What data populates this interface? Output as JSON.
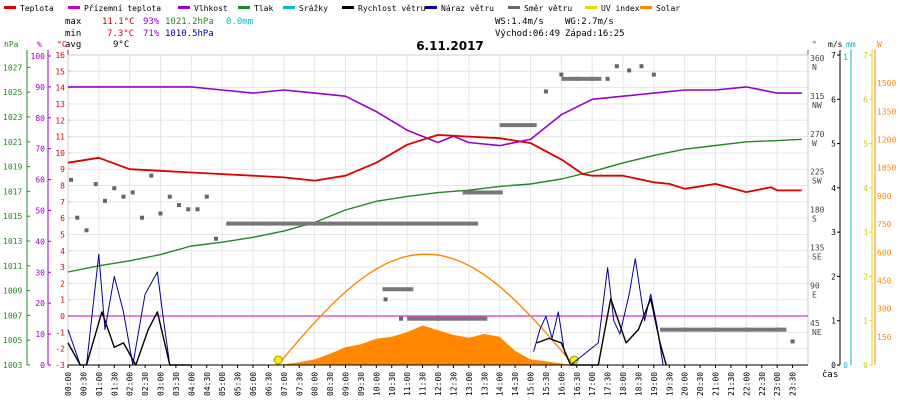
{
  "chart_data": {
    "type": "line",
    "title": "6.11.2017",
    "legend": [
      {
        "key": "temp",
        "label": "Teplota",
        "color": "#dd0000"
      },
      {
        "key": "feel",
        "label": "Přízemní teplota",
        "color": "#cc00cc"
      },
      {
        "key": "hum",
        "label": "Vlhkost",
        "color": "#9900cc"
      },
      {
        "key": "press",
        "label": "Tlak",
        "color": "#228822"
      },
      {
        "key": "rain",
        "label": "Srážky",
        "color": "#00bbcc"
      },
      {
        "key": "wspd",
        "label": "Rychlost větru",
        "color": "#000000"
      },
      {
        "key": "gust",
        "label": "Náraz větru",
        "color": "#000099"
      },
      {
        "key": "wdir",
        "label": "Směr větru",
        "color": "#666666"
      },
      {
        "key": "uv",
        "label": "UV index",
        "color": "#dddd00"
      },
      {
        "key": "solar",
        "label": "Solar",
        "color": "#ff8800"
      }
    ],
    "stats": {
      "max_label": "max",
      "max_temp": "11.1°C",
      "max_hum": "93%",
      "max_press": "1021.2hPa",
      "max_rain": "0.0mm",
      "min_label": "min",
      "min_temp": "7.3°C",
      "min_hum": "71%",
      "min_press": "1010.5hPa",
      "avg_label": "avg",
      "avg_temp": "9°C",
      "ws": "WS:1.4m/s",
      "wg": "WG:2.7m/s",
      "sunrise": "Východ:06:49",
      "sunset": "Západ:16:25"
    },
    "axes": {
      "hpa": {
        "unit": "hPa",
        "ticks": [
          1027,
          1025,
          1023,
          1021,
          1019,
          1017,
          1015,
          1013,
          1011,
          1009,
          1007,
          1005,
          1003
        ]
      },
      "pct": {
        "unit": "%",
        "ticks": [
          100,
          90,
          80,
          70,
          60,
          50,
          40,
          30,
          20,
          10,
          0
        ]
      },
      "temp": {
        "unit": "°C",
        "ticks": [
          16,
          15,
          14,
          13,
          12,
          11,
          10,
          9,
          8,
          7,
          6,
          5,
          4,
          3,
          2,
          1,
          0,
          -1,
          -2,
          -3
        ]
      },
      "dir": {
        "unit": "°",
        "ticks": [
          {
            "deg": "360",
            "c": "N"
          },
          {
            "deg": "315",
            "c": "NW"
          },
          {
            "deg": "270",
            "c": "W"
          },
          {
            "deg": "225",
            "c": "SW"
          },
          {
            "deg": "180",
            "c": "S"
          },
          {
            "deg": "135",
            "c": "SE"
          },
          {
            "deg": "90",
            "c": "E"
          },
          {
            "deg": "45",
            "c": "NE"
          }
        ]
      },
      "ms": {
        "unit": "m/s",
        "ticks": [
          7,
          6,
          5,
          4,
          3,
          2,
          1,
          0
        ]
      },
      "mm": {
        "unit": "mm",
        "ticks": [
          1,
          0
        ]
      },
      "uv": {
        "ticks": [
          7,
          6,
          5,
          4,
          3,
          2,
          1,
          0
        ]
      },
      "w": {
        "unit": "W",
        "ticks": [
          1500,
          1350,
          1200,
          1050,
          900,
          750,
          600,
          450,
          300,
          150
        ]
      },
      "xlabel": "čas",
      "x_ticks": [
        "00:00",
        "00:30",
        "01:00",
        "01:30",
        "02:00",
        "02:30",
        "03:00",
        "03:30",
        "04:00",
        "04:30",
        "05:00",
        "05:30",
        "06:00",
        "06:30",
        "07:00",
        "07:30",
        "08:00",
        "08:30",
        "09:00",
        "09:30",
        "10:00",
        "10:30",
        "11:00",
        "11:30",
        "12:00",
        "12:30",
        "13:00",
        "13:30",
        "14:00",
        "14:30",
        "15:00",
        "15:30",
        "16:00",
        "16:30",
        "17:00",
        "17:30",
        "18:00",
        "18:30",
        "19:00",
        "19:30",
        "20:00",
        "20:30",
        "21:00",
        "21:30",
        "22:00",
        "22:30",
        "23:00",
        "23:30"
      ]
    },
    "series": {
      "temp": {
        "hours": [
          0,
          1,
          2,
          3,
          4,
          5,
          6,
          7,
          8,
          9,
          10,
          11,
          12,
          13,
          14,
          15,
          16,
          16.7,
          17,
          18,
          19,
          19.5,
          20,
          21,
          22,
          22.8,
          23,
          23.8
        ],
        "values": [
          9.4,
          9.7,
          9.0,
          8.9,
          8.8,
          8.7,
          8.6,
          8.5,
          8.3,
          8.6,
          9.4,
          10.5,
          11.1,
          11.0,
          10.9,
          10.6,
          9.6,
          8.7,
          8.6,
          8.6,
          8.2,
          8.1,
          7.8,
          8.1,
          7.6,
          7.9,
          7.7,
          7.7
        ]
      },
      "hum": {
        "hours": [
          0,
          2,
          4,
          5,
          6,
          7,
          8,
          9,
          10,
          11,
          12,
          12.5,
          13,
          14,
          15,
          16,
          17,
          18,
          19,
          20,
          21,
          22,
          23,
          23.8
        ],
        "values": [
          90,
          90,
          90,
          89,
          88,
          89,
          88,
          87,
          82,
          76,
          72,
          74,
          72,
          71,
          73,
          81,
          86,
          87,
          88,
          89,
          89,
          90,
          88,
          88
        ]
      },
      "press": {
        "hours": [
          0,
          1,
          2,
          3,
          4,
          5,
          6,
          7,
          8,
          9,
          10,
          11,
          12,
          13,
          14,
          15,
          16,
          17,
          18,
          19,
          20,
          21,
          22,
          23,
          23.8
        ],
        "values": [
          1010.5,
          1011.0,
          1011.4,
          1011.9,
          1012.6,
          1012.9,
          1013.3,
          1013.8,
          1014.5,
          1015.5,
          1016.2,
          1016.6,
          1016.9,
          1017.1,
          1017.4,
          1017.6,
          1018.0,
          1018.6,
          1019.3,
          1019.9,
          1020.4,
          1020.7,
          1021.0,
          1021.1,
          1021.2
        ]
      },
      "solar_curve": {
        "peak_w": 590,
        "start_hour": 6.8,
        "end_hour": 16.4
      },
      "solar": {
        "hours": [
          6.8,
          7.5,
          8,
          8.5,
          9,
          9.5,
          10,
          10.5,
          11,
          11.5,
          12,
          12.5,
          13,
          13.5,
          14,
          14.5,
          15,
          15.5,
          16,
          16.4
        ],
        "values": [
          0,
          15,
          30,
          60,
          95,
          110,
          140,
          150,
          175,
          210,
          185,
          160,
          145,
          165,
          150,
          75,
          30,
          20,
          8,
          0
        ]
      },
      "wind_dir": {
        "hours": [
          0.1,
          0.3,
          0.6,
          0.9,
          1.2,
          1.5,
          1.8,
          2.1,
          2.4,
          2.7,
          3.0,
          3.3,
          3.6,
          3.9,
          4.2,
          4.5,
          4.8,
          5.2,
          6.5,
          7.5,
          8.5,
          9.5,
          10.3,
          10.8,
          12,
          13,
          14,
          15.5,
          16,
          16.5,
          17,
          17.5,
          17.8,
          18.2,
          18.6,
          19,
          20,
          21,
          22,
          23,
          23.5
        ],
        "values": [
          220,
          175,
          160,
          215,
          195,
          210,
          200,
          205,
          175,
          225,
          180,
          200,
          190,
          185,
          185,
          200,
          150,
          168,
          168,
          168,
          168,
          168,
          78,
          55,
          55,
          205,
          205,
          325,
          345,
          340,
          340,
          340,
          355,
          350,
          355,
          345,
          42,
          42,
          42,
          42,
          28
        ]
      },
      "wind_speed": {
        "hours": [
          0,
          0.4,
          0.6,
          1.1,
          1.5,
          1.8,
          2.2,
          2.6,
          2.9,
          3.3,
          3.6,
          4.0,
          15.2,
          15.6,
          16.0,
          16.3,
          17.2,
          17.6,
          18.1,
          18.5,
          18.9,
          19.2,
          19.4
        ],
        "values": [
          0.5,
          0.0,
          0.0,
          1.2,
          0.4,
          0.5,
          0.0,
          0.8,
          1.2,
          0.0,
          0.0,
          0.0,
          0.5,
          0.6,
          0.5,
          0.0,
          0.0,
          1.5,
          0.5,
          0.8,
          1.5,
          0.5,
          0.0
        ]
      },
      "gust": {
        "hours": [
          0,
          0.4,
          0.6,
          1.0,
          1.2,
          1.5,
          1.8,
          2.1,
          2.5,
          2.9,
          3.1,
          3.3,
          3.6,
          4.0,
          15.1,
          15.3,
          15.5,
          15.7,
          15.9,
          16.1,
          16.3,
          17.2,
          17.5,
          17.7,
          17.9,
          18.2,
          18.4,
          18.7,
          18.9,
          19.1,
          19.3,
          19.5
        ],
        "values": [
          0.8,
          0.0,
          0.0,
          2.5,
          0.8,
          2.0,
          1.2,
          0.0,
          1.6,
          2.1,
          1.0,
          0.0,
          0.0,
          0.0,
          0.3,
          0.8,
          1.1,
          0.6,
          1.2,
          0.3,
          0.0,
          0.5,
          2.2,
          1.0,
          0.7,
          1.6,
          2.4,
          1.0,
          1.6,
          0.9,
          0.0,
          0.0
        ]
      }
    }
  }
}
